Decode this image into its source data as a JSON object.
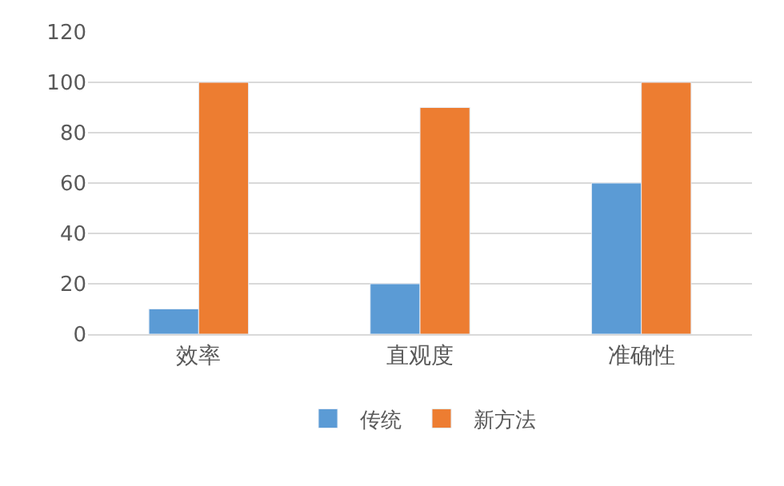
{
  "chart_data": {
    "type": "bar",
    "categories": [
      "效率",
      "直观度",
      "准确性"
    ],
    "series": [
      {
        "name": "传统",
        "color": "#5b9bd5",
        "values": [
          10,
          20,
          60
        ]
      },
      {
        "name": "新方法",
        "color": "#ed7d31",
        "values": [
          100,
          90,
          100
        ]
      }
    ],
    "ylim": [
      0,
      120
    ],
    "yticks": [
      0,
      20,
      40,
      60,
      80,
      100,
      120
    ],
    "grid": "y",
    "legend": "bottom"
  }
}
